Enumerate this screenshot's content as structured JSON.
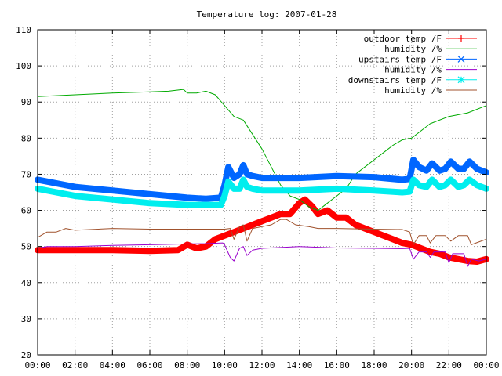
{
  "chart_data": {
    "type": "line",
    "title": "Temperature log: 2007-01-28",
    "xlabel": "",
    "ylabel": "",
    "ylim": [
      20,
      110
    ],
    "yticks": [
      20,
      30,
      40,
      50,
      60,
      70,
      80,
      90,
      100,
      110
    ],
    "xlim": [
      0,
      24
    ],
    "xtick_labels": [
      "00:00",
      "02:00",
      "04:00",
      "06:00",
      "08:00",
      "10:00",
      "12:00",
      "14:00",
      "16:00",
      "18:00",
      "20:00",
      "22:00",
      "00:00"
    ],
    "grid": true,
    "legend_position": "top-right",
    "series": [
      {
        "name": "outdoor temp /F",
        "color": "#ff0000",
        "marker": "plus",
        "x": [
          0,
          2,
          4,
          6,
          7.5,
          8,
          8.5,
          9,
          9.5,
          10,
          10.5,
          11,
          11.5,
          12,
          12.5,
          13,
          13.5,
          14,
          14.3,
          14.7,
          15,
          15.5,
          16,
          16.5,
          17,
          17.5,
          18,
          18.5,
          19,
          19.5,
          20,
          20.5,
          21,
          21.5,
          22,
          22.5,
          23,
          23.5,
          24
        ],
        "values": [
          49,
          49,
          49,
          48.8,
          49,
          50.5,
          49.5,
          50,
          52,
          53,
          54,
          55,
          56,
          57,
          58,
          59,
          59,
          62,
          63,
          61,
          59,
          60,
          58,
          58,
          56,
          55,
          54,
          53,
          52,
          51,
          50.5,
          49.5,
          48.5,
          48,
          47,
          46.5,
          46,
          45.8,
          46.5
        ]
      },
      {
        "name": "humidity /%",
        "color": "#00aa00",
        "marker": "none",
        "x": [
          0,
          2,
          4,
          6,
          7,
          7.8,
          8,
          8.5,
          9,
          9.5,
          10,
          10.5,
          11,
          11.5,
          12,
          12.5,
          13,
          13.5,
          14,
          14.5,
          15,
          15.5,
          16,
          16.5,
          17,
          17.5,
          18,
          18.5,
          19,
          19.5,
          20,
          20.5,
          21,
          22,
          23,
          24
        ],
        "values": [
          91.5,
          92,
          92.5,
          92.8,
          93,
          93.5,
          92.5,
          92.5,
          93,
          92,
          89,
          86,
          85,
          81,
          77,
          72,
          67,
          64,
          63,
          61,
          60,
          62,
          64,
          66,
          70,
          72,
          74,
          76,
          78,
          79.5,
          80,
          82,
          84,
          86,
          87,
          89
        ]
      },
      {
        "name": "upstairs temp /F",
        "color": "#0066ff",
        "marker": "cross",
        "x": [
          0,
          2,
          4,
          6,
          8,
          9,
          9.8,
          10,
          10.2,
          10.5,
          10.8,
          11,
          11.2,
          11.5,
          12,
          14,
          16,
          18,
          19.5,
          19.9,
          20.1,
          20.4,
          20.8,
          21.1,
          21.5,
          21.8,
          22.1,
          22.5,
          22.8,
          23.1,
          23.5,
          24
        ],
        "values": [
          68.5,
          66.5,
          65.5,
          64.5,
          63.5,
          63.2,
          63.5,
          67,
          72,
          69,
          70,
          72.5,
          70,
          69.5,
          69,
          69,
          69.5,
          69.2,
          68.5,
          68.7,
          74,
          72,
          71,
          73,
          71,
          71.5,
          73.5,
          71.5,
          71.5,
          73.5,
          71.5,
          70.5
        ]
      },
      {
        "name": "humidity /%",
        "color": "#9900cc",
        "marker": "none",
        "x": [
          0,
          0.5,
          2,
          4,
          6,
          8,
          9,
          9.9,
          10,
          10.3,
          10.5,
          10.8,
          11,
          11.2,
          11.5,
          12,
          14,
          16,
          18,
          19.5,
          19.9,
          20.1,
          20.4,
          20.8,
          21,
          21.2,
          21.8,
          22,
          22.2,
          22.8,
          23,
          23.2,
          23.6,
          24
        ],
        "values": [
          49.5,
          50,
          50,
          50.3,
          50.5,
          50.7,
          50.8,
          51,
          50.5,
          47,
          46,
          49.5,
          50,
          47.5,
          49,
          49.5,
          50,
          49.6,
          49.5,
          49.4,
          49.5,
          46.5,
          48.5,
          48.5,
          47,
          48.5,
          48.5,
          45.5,
          48,
          48,
          44.5,
          46.5,
          46,
          46.5
        ]
      },
      {
        "name": "downstairs temp /F",
        "color": "#00eeee",
        "marker": "star",
        "x": [
          0,
          2,
          4,
          6,
          8,
          9,
          9.8,
          10,
          10.2,
          10.5,
          10.8,
          11,
          11.2,
          11.5,
          12,
          14,
          16,
          18,
          19.5,
          19.9,
          20.1,
          20.4,
          20.8,
          21.1,
          21.5,
          21.8,
          22.1,
          22.5,
          22.8,
          23.1,
          23.5,
          24
        ],
        "values": [
          66,
          64,
          63,
          62,
          61.5,
          61.5,
          61.5,
          64,
          68,
          66,
          66,
          68.5,
          66.5,
          66,
          65.5,
          65.5,
          66,
          65.5,
          65,
          65.2,
          68.5,
          67,
          66.5,
          68.5,
          66.5,
          67,
          68.5,
          66.5,
          67,
          68.5,
          67,
          66
        ]
      },
      {
        "name": "humidity /%",
        "color": "#a0522d",
        "marker": "none",
        "x": [
          0,
          0.5,
          1,
          1.5,
          2,
          4,
          6,
          8,
          9,
          10,
          10.3,
          10.5,
          10.8,
          11,
          11.2,
          11.5,
          12,
          12.5,
          13,
          13.3,
          13.8,
          14.5,
          15,
          16,
          18,
          19.5,
          19.9,
          20.1,
          20.4,
          20.8,
          21,
          21.3,
          21.8,
          22.1,
          22.5,
          23,
          23.2,
          24
        ],
        "values": [
          52.5,
          54,
          54,
          55,
          54.5,
          55,
          54.8,
          54.8,
          54.8,
          54.8,
          55,
          52,
          55.5,
          56,
          51.5,
          55,
          55.5,
          56,
          57.5,
          57.5,
          56,
          55.5,
          55,
          55,
          54.8,
          54.7,
          54,
          50.5,
          53,
          53,
          51,
          53,
          53,
          51.5,
          53,
          53,
          50.5,
          52
        ]
      }
    ]
  }
}
